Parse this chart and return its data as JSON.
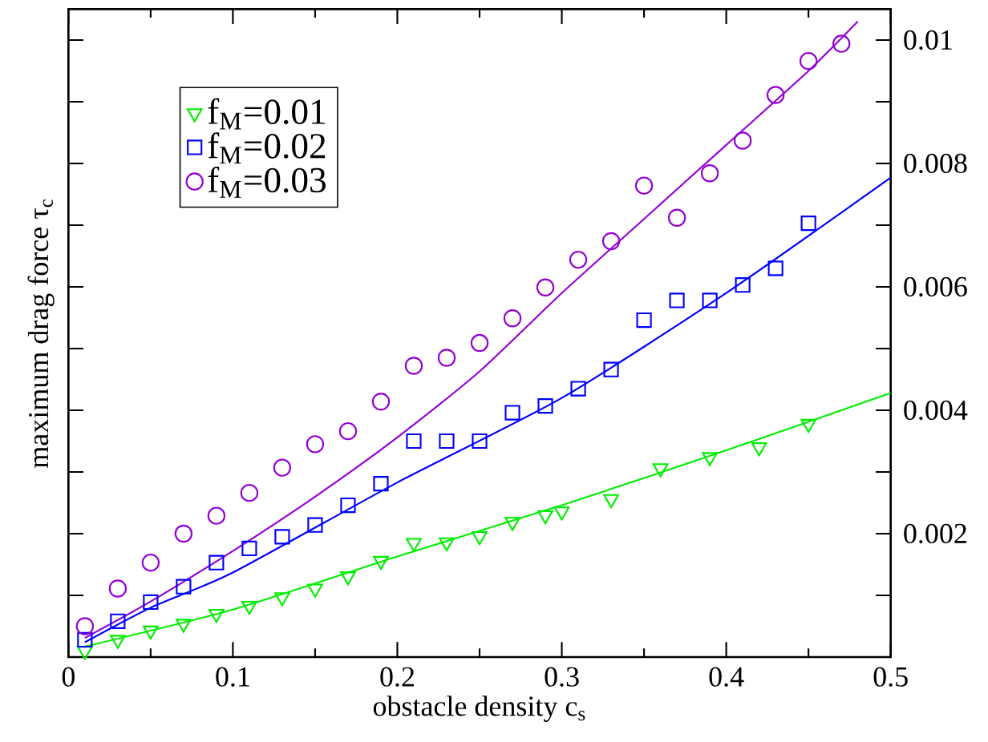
{
  "chart_data": {
    "type": "scatter",
    "xlabel": "obstacle density c$_{s}$",
    "ylabel": "maximum drag force τ$_{c}$",
    "xlim": [
      0,
      0.5
    ],
    "ylim": [
      0,
      0.0105
    ],
    "xticks": [
      0,
      0.1,
      0.2,
      0.3,
      0.4,
      0.5
    ],
    "yticks": [
      {
        "value": 0.001,
        "label": null
      },
      0.002,
      {
        "value": 0.003,
        "label": null
      },
      0.004,
      {
        "value": 0.005,
        "label": null
      },
      0.006,
      {
        "value": 0.007,
        "label": null
      },
      0.008,
      {
        "value": 0.009,
        "label": null
      },
      0.01
    ],
    "legend": "top left",
    "series": [
      {
        "name": "f$_{M}$=0.01",
        "marker": "triangle",
        "color": "#00ee00",
        "x": [
          0.01,
          0.03,
          0.05,
          0.07,
          0.09,
          0.11,
          0.13,
          0.15,
          0.17,
          0.19,
          0.21,
          0.23,
          0.25,
          0.27,
          0.29,
          0.3,
          0.33,
          0.36,
          0.39,
          0.42,
          0.45
        ],
        "values": [
          0.0001,
          0.00028,
          0.00043,
          0.00054,
          0.0007,
          0.00083,
          0.00097,
          0.00111,
          0.00131,
          0.00156,
          0.00185,
          0.00186,
          0.00196,
          0.00219,
          0.0023,
          0.00236,
          0.00256,
          0.00306,
          0.00324,
          0.0034,
          0.00378
        ]
      },
      {
        "name": "f$_{M}$=0.02",
        "marker": "square",
        "color": "#0000ff",
        "x": [
          0.01,
          0.03,
          0.05,
          0.07,
          0.09,
          0.11,
          0.13,
          0.15,
          0.17,
          0.19,
          0.21,
          0.23,
          0.25,
          0.27,
          0.29,
          0.31,
          0.33,
          0.35,
          0.37,
          0.39,
          0.41,
          0.43,
          0.45
        ],
        "values": [
          0.00028,
          0.00058,
          0.00089,
          0.00114,
          0.00153,
          0.00176,
          0.00195,
          0.00214,
          0.00246,
          0.00281,
          0.0035,
          0.0035,
          0.0035,
          0.00396,
          0.00407,
          0.00435,
          0.00466,
          0.00546,
          0.00578,
          0.00578,
          0.00603,
          0.0063,
          0.00703
        ]
      },
      {
        "name": "f$_{M}$=0.03",
        "marker": "circle",
        "color": "#9400d3",
        "x": [
          0.01,
          0.03,
          0.05,
          0.07,
          0.09,
          0.11,
          0.13,
          0.15,
          0.17,
          0.19,
          0.21,
          0.23,
          0.25,
          0.27,
          0.29,
          0.31,
          0.33,
          0.35,
          0.37,
          0.39,
          0.41,
          0.43,
          0.45,
          0.47
        ],
        "values": [
          0.0005,
          0.00111,
          0.00153,
          0.002,
          0.00229,
          0.00266,
          0.00307,
          0.00345,
          0.00366,
          0.00414,
          0.00472,
          0.00485,
          0.00509,
          0.00549,
          0.00599,
          0.00644,
          0.00674,
          0.00764,
          0.00712,
          0.00784,
          0.00837,
          0.00911,
          0.00966,
          0.00994
        ]
      },
      {
        "type": "line",
        "marker": "none",
        "color": "#00ee00",
        "x": [
          0.01,
          0.1,
          0.2,
          0.3,
          0.4,
          0.5
        ],
        "values": [
          0.00017,
          0.00077,
          0.00163,
          0.00246,
          0.00335,
          0.00428
        ]
      },
      {
        "type": "line",
        "marker": "none",
        "color": "#0000ff",
        "x": [
          0.01,
          0.05,
          0.1,
          0.2,
          0.3,
          0.4,
          0.5
        ],
        "values": [
          0.00024,
          0.0008,
          0.00137,
          0.00283,
          0.0042,
          0.0059,
          0.00777
        ]
      },
      {
        "type": "line",
        "marker": "none",
        "color": "#9400d3",
        "x": [
          0.01,
          0.05,
          0.1,
          0.15,
          0.2,
          0.25,
          0.3,
          0.35,
          0.4,
          0.45,
          0.48
        ],
        "values": [
          0.00031,
          0.0009,
          0.00172,
          0.0026,
          0.00356,
          0.00463,
          0.0059,
          0.0071,
          0.0083,
          0.0095,
          0.0103
        ]
      }
    ]
  }
}
